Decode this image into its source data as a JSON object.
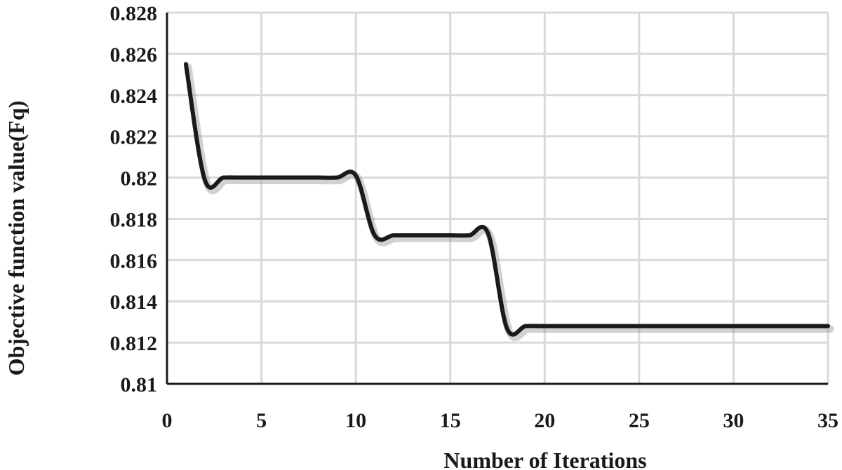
{
  "chart_data": {
    "type": "line",
    "title": "",
    "xlabel": "Number of Iterations",
    "ylabel": "Objective function  value(Fq)",
    "xlim": [
      0,
      35
    ],
    "ylim": [
      0.81,
      0.828
    ],
    "x_ticks": [
      0,
      5,
      10,
      15,
      20,
      25,
      30,
      35
    ],
    "x_tick_labels": [
      "0",
      "5",
      "10",
      "15",
      "20",
      "25",
      "30",
      "35"
    ],
    "y_ticks": [
      0.81,
      0.812,
      0.814,
      0.816,
      0.818,
      0.82,
      0.822,
      0.824,
      0.826,
      0.828
    ],
    "y_tick_labels": [
      "0.81",
      "0.812",
      "0.814",
      "0.816",
      "0.818",
      "0.82",
      "0.822",
      "0.824",
      "0.826",
      "0.828"
    ],
    "grid": true,
    "legend": "none",
    "series": [
      {
        "color": "#1a1a1a",
        "x": [
          1,
          2,
          3,
          4,
          5,
          6,
          7,
          8,
          9,
          10,
          11,
          12,
          13,
          14,
          15,
          16,
          17,
          18,
          19,
          20,
          21,
          22,
          23,
          24,
          25,
          26,
          27,
          28,
          29,
          30,
          31,
          32,
          33,
          34,
          35
        ],
        "y": [
          0.8255,
          0.8199,
          0.82,
          0.82,
          0.82,
          0.82,
          0.82,
          0.82,
          0.82,
          0.8201,
          0.8172,
          0.8172,
          0.8172,
          0.8172,
          0.8172,
          0.8172,
          0.8173,
          0.8127,
          0.8128,
          0.8128,
          0.8128,
          0.8128,
          0.8128,
          0.8128,
          0.8128,
          0.8128,
          0.8128,
          0.8128,
          0.8128,
          0.8128,
          0.8128,
          0.8128,
          0.8128,
          0.8128,
          0.8128
        ]
      }
    ]
  }
}
